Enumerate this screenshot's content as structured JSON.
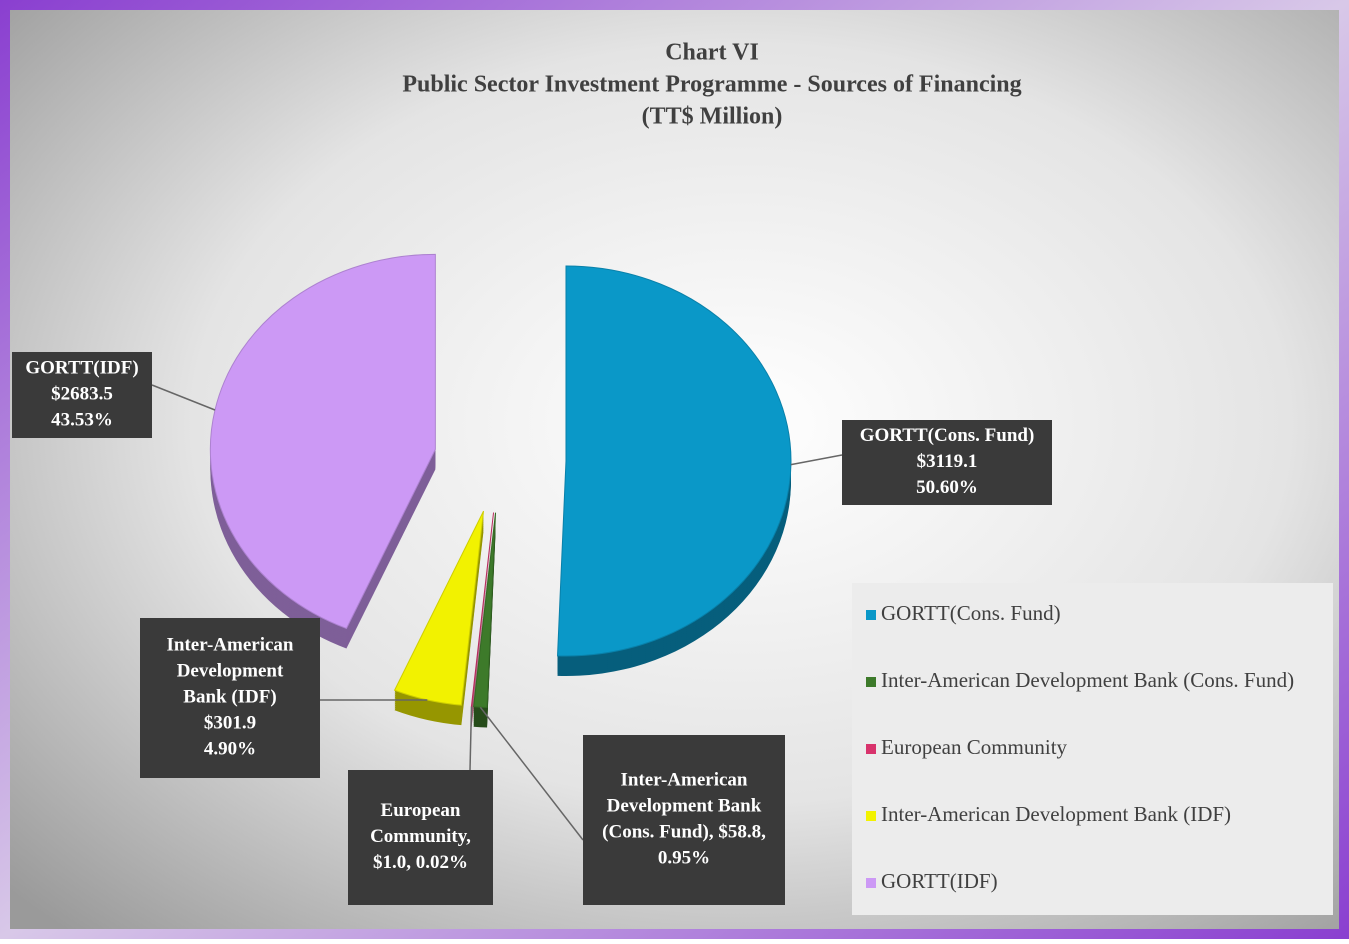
{
  "chart_data": {
    "type": "pie",
    "title": "Chart VI",
    "subtitle": "Public Sector Investment Programme - Sources of Financing",
    "unit_label": "(TT$ Million)",
    "categories": [
      "GORTT(Cons. Fund)",
      "Inter-American Development Bank (Cons. Fund)",
      "European Community",
      "Inter-American Development Bank (IDF)",
      "GORTT(IDF)"
    ],
    "values": [
      3119.1,
      58.8,
      1.0,
      301.9,
      2683.5
    ],
    "value_labels": [
      [
        "GORTT(Cons. Fund)",
        "$3119.1",
        "50.60%"
      ],
      [
        "Inter-American",
        "Development Bank",
        "(Cons. Fund), $58.8,",
        "0.95%"
      ],
      [
        "European",
        "Community,",
        "$1.0, 0.02%"
      ],
      [
        "Inter-American",
        "Development",
        "Bank (IDF)",
        "$301.9",
        "4.90%"
      ],
      [
        "GORTT(IDF)",
        "$2683.5",
        "43.53%"
      ]
    ],
    "colors": [
      "#0a98c8",
      "#3d7a2a",
      "#d8336c",
      "#f2f200",
      "#cc99f5"
    ],
    "legend": "right"
  }
}
